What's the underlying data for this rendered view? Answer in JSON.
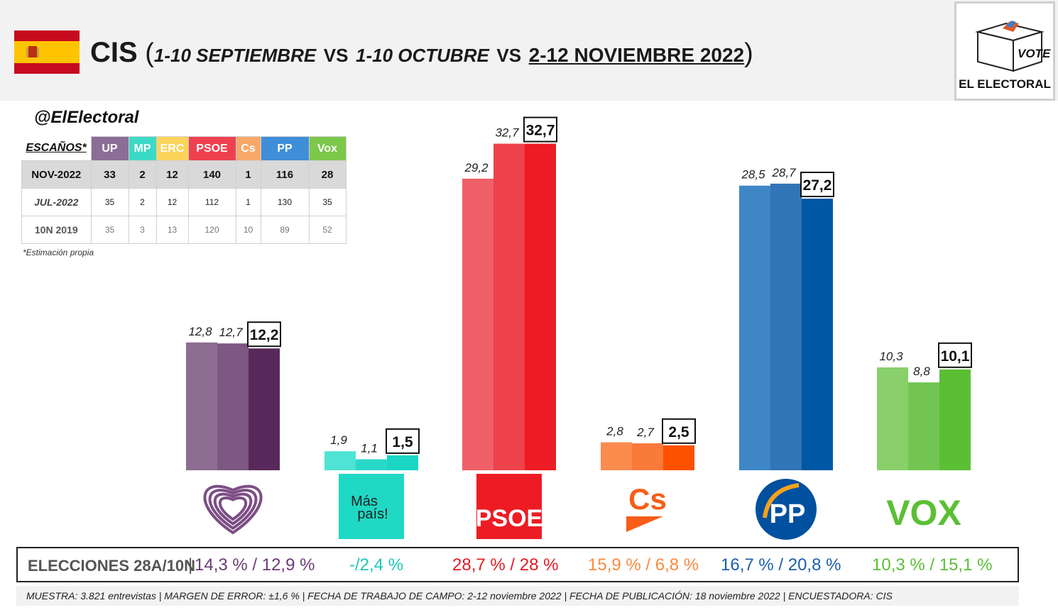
{
  "header": {
    "title_main": "CIS",
    "title_open": "(",
    "period1": "1-10 SEPTIEMBRE",
    "vs1": "VS",
    "period2": "1-10 OCTUBRE",
    "vs2": "VS",
    "period3": "2-12 NOVIEMBRE 2022",
    "title_close": ")",
    "logo_box_text": "VOTE",
    "logo_brand": "EL ELECTORAL"
  },
  "handle": "@ElElectoral",
  "seats_table": {
    "corner": "ESCAÑOS*",
    "columns": [
      {
        "label": "UP",
        "color": "#8c6d96"
      },
      {
        "label": "MP",
        "color": "#3dd9c7"
      },
      {
        "label": "ERC",
        "color": "#fcd45a"
      },
      {
        "label": "PSOE",
        "color": "#ef4050"
      },
      {
        "label": "Cs",
        "color": "#f9a86a"
      },
      {
        "label": "PP",
        "color": "#3f8ed8"
      },
      {
        "label": "Vox",
        "color": "#7cc84a"
      }
    ],
    "rows": [
      {
        "label": "NOV-2022",
        "values": [
          "33",
          "2",
          "12",
          "140",
          "1",
          "116",
          "28"
        ]
      },
      {
        "label": "JUL-2022",
        "values": [
          "35",
          "2",
          "12",
          "112",
          "1",
          "130",
          "35"
        ]
      },
      {
        "label": "10N 2019",
        "values": [
          "35",
          "3",
          "13",
          "120",
          "10",
          "89",
          "52"
        ]
      }
    ],
    "note": "*Estimación propia"
  },
  "chart_data": {
    "type": "bar",
    "categories": [
      "UP",
      "Más País",
      "PSOE",
      "Cs",
      "PP",
      "Vox"
    ],
    "series": [
      {
        "values": [
          12.8,
          1.9,
          29.2,
          2.8,
          28.5,
          10.3
        ]
      },
      {
        "values": [
          12.7,
          1.1,
          32.7,
          2.7,
          28.7,
          8.8
        ]
      },
      {
        "values": [
          12.2,
          1.5,
          32.7,
          2.5,
          27.2,
          10.1
        ]
      }
    ],
    "labels": [
      [
        "12,8",
        "12,7",
        "12,2"
      ],
      [
        "1,9",
        "1,1",
        "1,5"
      ],
      [
        "29,2",
        "32,7",
        "32,7"
      ],
      [
        "2,8",
        "2,7",
        "2,5"
      ],
      [
        "28,5",
        "28,7",
        "27,2"
      ],
      [
        "10,3",
        "8,8",
        "10,1"
      ]
    ],
    "colors": [
      [
        "#8d6d91",
        "#7c5882",
        "#57295a"
      ],
      [
        "#4ee3d3",
        "#29d9c8",
        "#1ad6c2"
      ],
      [
        "#f06068",
        "#ee424c",
        "#ed1c24"
      ],
      [
        "#fb8c4e",
        "#fa7a3a",
        "#fd5100"
      ],
      [
        "#3e86c6",
        "#3075b6",
        "#0057a4"
      ],
      [
        "#8ad06a",
        "#72c552",
        "#5bbf35"
      ]
    ],
    "ylim": [
      0,
      35
    ],
    "logos": [
      {
        "name": "podemos-heart-logo",
        "kind": "heart",
        "color": "#7c4e85"
      },
      {
        "name": "mas-pais-logo",
        "kind": "box",
        "bg": "#1fd9c4",
        "line1": "Más",
        "line2": "país!",
        "color": "#222222"
      },
      {
        "name": "psoe-logo",
        "kind": "box",
        "bg": "#ed1c24",
        "line1": "PSOE",
        "line2": "",
        "color": "#ffffff"
      },
      {
        "name": "cs-logo",
        "kind": "cs",
        "text": "Cs",
        "color": "#f95d17"
      },
      {
        "name": "pp-logo",
        "kind": "pp",
        "text": "PP",
        "color": "#0050a0"
      },
      {
        "name": "vox-logo",
        "kind": "vox",
        "text": "VOX",
        "color": "#5bbf35"
      }
    ]
  },
  "elections": {
    "label": "ELECCIONES 28A/10N",
    "results": [
      {
        "text": "14,3 % / 12,9 %",
        "color": "#6a3b75"
      },
      {
        "text": "-/2,4 %",
        "color": "#1ec9b5"
      },
      {
        "text": "28,7  % / 28 %",
        "color": "#e21c24"
      },
      {
        "text": "15,9 % / 6,8 %",
        "color": "#f98b3f"
      },
      {
        "text": "16,7 % / 20,8 %",
        "color": "#1b5fa8"
      },
      {
        "text": "10,3 % / 15,1 %",
        "color": "#5bbf35"
      }
    ]
  },
  "footer": "MUESTRA: 3.821 entrevistas | MARGEN DE ERROR: ±1,6 % | FECHA DE TRABAJO DE CAMPO: 2-12 noviembre 2022 | FECHA DE PUBLICACIÓN: 18 noviembre 2022 | ENCUESTADORA: CIS"
}
